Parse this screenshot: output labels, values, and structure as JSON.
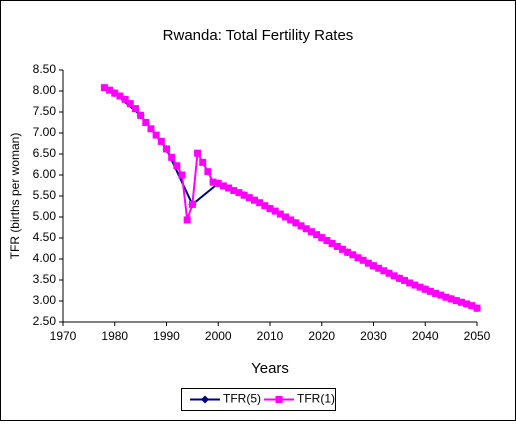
{
  "chart_data": {
    "type": "line",
    "title": "Rwanda:  Total Fertility Rates",
    "x_label": "Years",
    "y_label": "TFR (births per woman)",
    "xlim": [
      1970,
      2050
    ],
    "xticks": [
      1970,
      1980,
      1990,
      2000,
      2010,
      2020,
      2030,
      2040,
      2050
    ],
    "ylim": [
      2.5,
      8.5
    ],
    "yticks": [
      {
        "value": 2.5,
        "label": "2.50"
      },
      {
        "value": 3,
        "label": "3.00"
      },
      {
        "value": 3.5,
        "label": "3.50"
      },
      {
        "value": 4,
        "label": "4.00"
      },
      {
        "value": 4.5,
        "label": "4.50"
      },
      {
        "value": 5,
        "label": "5.00"
      },
      {
        "value": 5.5,
        "label": "5.50"
      },
      {
        "value": 6,
        "label": "6.00"
      },
      {
        "value": 6.5,
        "label": "6.50"
      },
      {
        "value": 7,
        "label": "7.00"
      },
      {
        "value": 7.5,
        "label": "7.50"
      },
      {
        "value": 8,
        "label": "8.00"
      },
      {
        "value": 8.5,
        "label": "8.50"
      }
    ],
    "legend": "bottom",
    "series": [
      {
        "name": "TFR(5)",
        "color": "#000080",
        "marker": "diamond",
        "x": [
          1980,
          1985,
          1990,
          1995,
          2000,
          2005,
          2010,
          2015,
          2020,
          2025,
          2030,
          2035,
          2040,
          2045,
          2050
        ],
        "values": [
          7.95,
          7.42,
          6.62,
          5.3,
          5.8,
          5.52,
          5.2,
          4.86,
          4.51,
          4.16,
          3.84,
          3.54,
          3.28,
          3.05,
          2.83
        ]
      },
      {
        "name": "TFR(1)",
        "color": "#ff00ff",
        "marker": "square",
        "x": [
          1978,
          1979,
          1980,
          1981,
          1982,
          1983,
          1984,
          1985,
          1986,
          1987,
          1988,
          1989,
          1990,
          1991,
          1992,
          1993,
          1994,
          1995,
          1996,
          1997,
          1998,
          1999,
          2000,
          2001,
          2002,
          2003,
          2004,
          2005,
          2006,
          2007,
          2008,
          2009,
          2010,
          2011,
          2012,
          2013,
          2014,
          2015,
          2016,
          2017,
          2018,
          2019,
          2020,
          2021,
          2022,
          2023,
          2024,
          2025,
          2026,
          2027,
          2028,
          2029,
          2030,
          2031,
          2032,
          2033,
          2034,
          2035,
          2036,
          2037,
          2038,
          2039,
          2040,
          2041,
          2042,
          2043,
          2044,
          2045,
          2046,
          2047,
          2048,
          2049,
          2050
        ],
        "values": [
          8.08,
          8.02,
          7.95,
          7.88,
          7.8,
          7.7,
          7.58,
          7.42,
          7.25,
          7.1,
          6.95,
          6.8,
          6.62,
          6.42,
          6.22,
          6.0,
          4.93,
          5.3,
          6.52,
          6.3,
          6.08,
          5.83,
          5.8,
          5.74,
          5.69,
          5.63,
          5.58,
          5.52,
          5.46,
          5.4,
          5.34,
          5.27,
          5.2,
          5.14,
          5.07,
          5.0,
          4.93,
          4.86,
          4.79,
          4.72,
          4.65,
          4.58,
          4.51,
          4.44,
          4.37,
          4.3,
          4.23,
          4.16,
          4.1,
          4.03,
          3.97,
          3.9,
          3.84,
          3.78,
          3.72,
          3.66,
          3.6,
          3.54,
          3.49,
          3.43,
          3.38,
          3.33,
          3.28,
          3.23,
          3.18,
          3.14,
          3.09,
          3.05,
          3.01,
          2.97,
          2.93,
          2.89,
          2.83
        ]
      }
    ]
  }
}
